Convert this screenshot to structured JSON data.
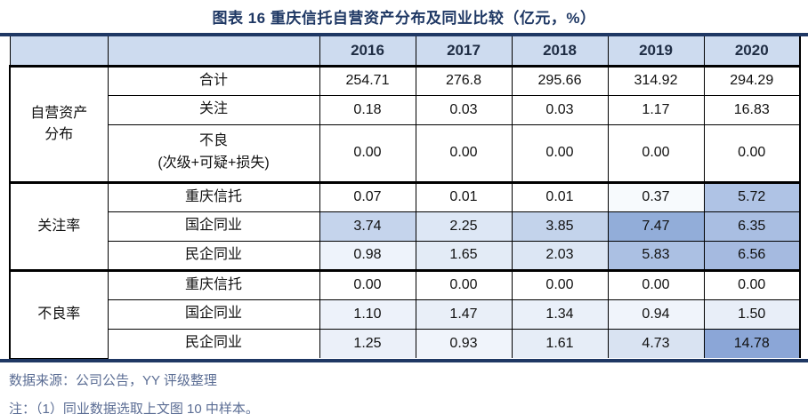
{
  "title": "图表 16 重庆信托自营资产分布及同业比较（亿元，%）",
  "colors": {
    "navy_rule": "#1F3864",
    "header_bg": "#CDDBEF",
    "footer_text": "#5B6D94",
    "heat_max_blue": "#8BA6D7"
  },
  "table": {
    "year_headers": [
      "2016",
      "2017",
      "2018",
      "2019",
      "2020"
    ],
    "groups": [
      {
        "label": "自营资产\n分布",
        "rows": [
          {
            "label": "合计",
            "values": [
              "254.71",
              "276.8",
              "295.66",
              "314.92",
              "294.29"
            ],
            "bg": [
              "#FFFFFF",
              "#FFFFFF",
              "#FFFFFF",
              "#FFFFFF",
              "#FFFFFF"
            ]
          },
          {
            "label": "关注",
            "values": [
              "0.18",
              "0.03",
              "0.03",
              "1.17",
              "16.83"
            ],
            "bg": [
              "#FFFFFF",
              "#FFFFFF",
              "#FFFFFF",
              "#FFFFFF",
              "#FFFFFF"
            ]
          },
          {
            "label": "不良\n(次级+可疑+损失)",
            "values": [
              "0.00",
              "0.00",
              "0.00",
              "0.00",
              "0.00"
            ],
            "bg": [
              "#FFFFFF",
              "#FFFFFF",
              "#FFFFFF",
              "#FFFFFF",
              "#FFFFFF"
            ]
          }
        ]
      },
      {
        "label": "关注率",
        "rows": [
          {
            "label": "重庆信托",
            "values": [
              "0.07",
              "0.01",
              "0.01",
              "0.37",
              "5.72"
            ],
            "bg": [
              "#FFFFFF",
              "#FFFFFF",
              "#FFFFFF",
              "#F7FAFD",
              "#AFC3E5"
            ]
          },
          {
            "label": "国企同业",
            "values": [
              "3.74",
              "2.25",
              "3.85",
              "7.47",
              "6.35"
            ],
            "bg": [
              "#C5D4EC",
              "#DDE7F5",
              "#C3D3EB",
              "#92ADD9",
              "#A9BEE2"
            ]
          },
          {
            "label": "民企同业",
            "values": [
              "0.98",
              "1.65",
              "2.03",
              "5.83",
              "6.56"
            ],
            "bg": [
              "#EEF3FB",
              "#E3EBF6",
              "#DCE6F4",
              "#ABC0E3",
              "#A5BAE0"
            ]
          }
        ]
      },
      {
        "label": "不良率",
        "rows": [
          {
            "label": "重庆信托",
            "values": [
              "0.00",
              "0.00",
              "0.00",
              "0.00",
              "0.00"
            ],
            "bg": [
              "#FFFFFF",
              "#FFFFFF",
              "#FFFFFF",
              "#FFFFFF",
              "#FFFFFF"
            ]
          },
          {
            "label": "国企同业",
            "values": [
              "1.10",
              "1.47",
              "1.34",
              "0.94",
              "1.50"
            ],
            "bg": [
              "#EDF2FA",
              "#E9EFF8",
              "#EAF0F9",
              "#F0F4FB",
              "#E8EEF8"
            ]
          },
          {
            "label": "民企同业",
            "values": [
              "1.25",
              "0.93",
              "1.61",
              "4.73",
              "14.78"
            ],
            "bg": [
              "#EBF0F9",
              "#F0F4FB",
              "#E6EDF7",
              "#D9E3F2",
              "#8BA6D7"
            ]
          }
        ]
      }
    ]
  },
  "footer": {
    "source": "数据来源：公司公告，YY 评级整理",
    "note": "注：（1）同业数据选取上文图 10 中样本。"
  }
}
